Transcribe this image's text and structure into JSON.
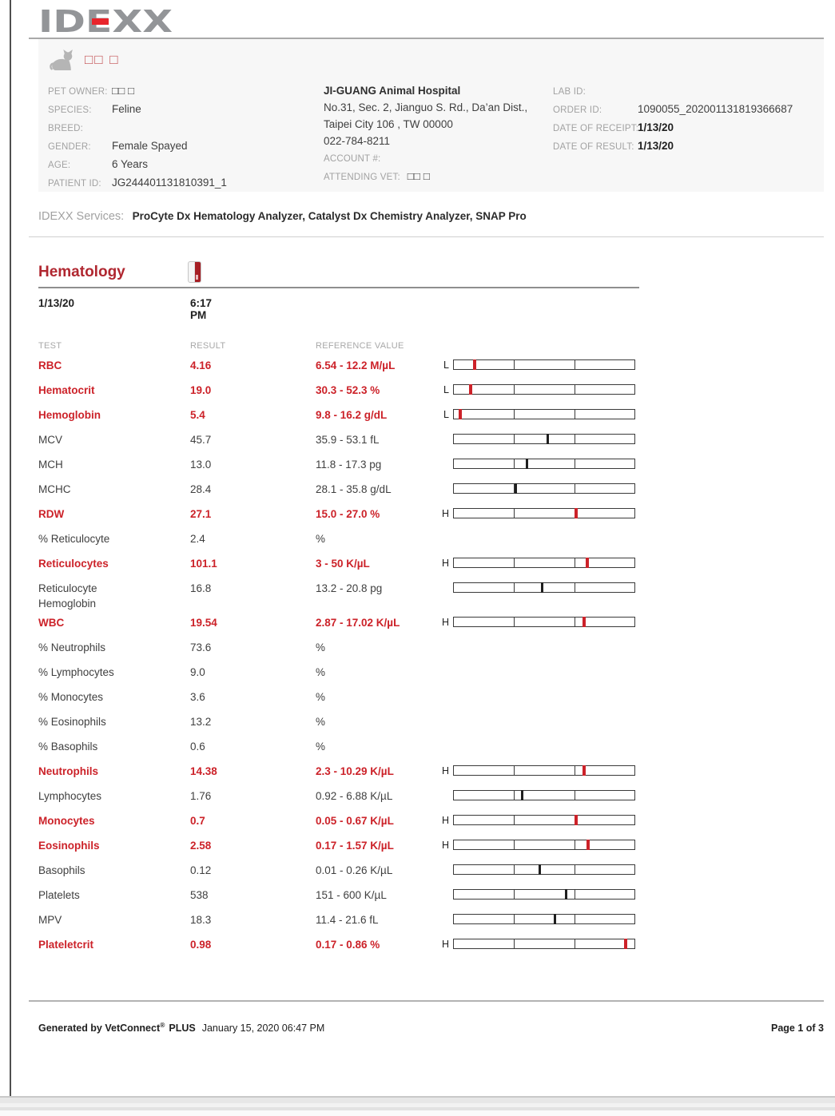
{
  "colors": {
    "abnormal_red": "#cc2229",
    "heading_red": "#b02730",
    "logo_gray": "#939598",
    "logo_red": "#e8252c",
    "label_gray": "#a2a2a2",
    "panel_bg": "#f7f7f7"
  },
  "header": {
    "logo_text": "IDEXX",
    "pet_name": "□□ □",
    "fields_left": [
      {
        "label": "PET OWNER:",
        "value": "□□ □"
      },
      {
        "label": "SPECIES:",
        "value": "Feline"
      },
      {
        "label": "BREED:",
        "value": ""
      },
      {
        "label": "GENDER:",
        "value": "Female Spayed"
      },
      {
        "label": "AGE:",
        "value": "6 Years"
      },
      {
        "label": "PATIENT ID:",
        "value": "JG244401131810391_1"
      }
    ],
    "hospital": {
      "name": "JI-GUANG Animal Hospital",
      "address1": "No.31, Sec. 2, Jianguo S. Rd., Da’an Dist.,",
      "address2": "Taipei City 106 , TW 00000",
      "phone": "022-784-8211",
      "account_label": "ACCOUNT #:",
      "attending_label": "ATTENDING VET:",
      "attending_value": "□□ □"
    },
    "order": [
      {
        "label": "LAB ID:",
        "value": ""
      },
      {
        "label": "ORDER ID:",
        "value": "1090055_202001131819366687"
      },
      {
        "label": "DATE OF RECEIPT:",
        "value": "1/13/20"
      },
      {
        "label": "DATE OF RESULT:",
        "value": "1/13/20"
      }
    ]
  },
  "services": {
    "label": "IDEXX Services:",
    "value": "ProCyte Dx Hematology Analyzer, Catalyst Dx Chemistry Analyzer, SNAP Pro"
  },
  "hematology": {
    "title": "Hematology",
    "date": "1/13/20",
    "time": "6:17 PM",
    "columns": {
      "test": "TEST",
      "result": "RESULT",
      "reference": "REFERENCE VALUE"
    },
    "rows": [
      {
        "test": "RBC",
        "result": "4.16",
        "reference": "6.54 - 12.2 M/µL",
        "flag": "L",
        "abnormal": true,
        "bar": true,
        "marker_pct": 11.5
      },
      {
        "test": "Hematocrit",
        "result": "19.0",
        "reference": "30.3 - 52.3 %",
        "flag": "L",
        "abnormal": true,
        "bar": true,
        "marker_pct": 9.5
      },
      {
        "test": "Hemoglobin",
        "result": "5.4",
        "reference": "9.8 - 16.2 g/dL",
        "flag": "L",
        "abnormal": true,
        "bar": true,
        "marker_pct": 3.5
      },
      {
        "test": "MCV",
        "result": "45.7",
        "reference": "35.9 - 53.1 fL",
        "flag": "",
        "abnormal": false,
        "bar": true,
        "marker_pct": 52.3
      },
      {
        "test": "MCH",
        "result": "13.0",
        "reference": "11.8 - 17.3 pg",
        "flag": "",
        "abnormal": false,
        "bar": true,
        "marker_pct": 40.6
      },
      {
        "test": "MCHC",
        "result": "28.4",
        "reference": "28.1 - 35.8 g/dL",
        "flag": "",
        "abnormal": false,
        "bar": true,
        "marker_pct": 34.6
      },
      {
        "test": "RDW",
        "result": "27.1",
        "reference": "15.0 - 27.0 %",
        "flag": "H",
        "abnormal": true,
        "bar": true,
        "marker_pct": 67.5
      },
      {
        "test": "% Reticulocyte",
        "result": "2.4",
        "reference": "%",
        "flag": "",
        "abnormal": false,
        "bar": false,
        "marker_pct": null
      },
      {
        "test": "Reticulocytes",
        "result": "101.1",
        "reference": "3 - 50 K/µL",
        "flag": "H",
        "abnormal": true,
        "bar": true,
        "marker_pct": 74
      },
      {
        "test": "Reticulocyte\nHemoglobin",
        "result": "16.8",
        "reference": "13.2 - 20.8 pg",
        "flag": "",
        "abnormal": false,
        "bar": true,
        "marker_pct": 49
      },
      {
        "test": "WBC",
        "result": "19.54",
        "reference": "2.87 - 17.02 K/µL",
        "flag": "H",
        "abnormal": true,
        "bar": true,
        "marker_pct": 72
      },
      {
        "test": "% Neutrophils",
        "result": "73.6",
        "reference": "%",
        "flag": "",
        "abnormal": false,
        "bar": false,
        "marker_pct": null
      },
      {
        "test": "% Lymphocytes",
        "result": "9.0",
        "reference": "%",
        "flag": "",
        "abnormal": false,
        "bar": false,
        "marker_pct": null
      },
      {
        "test": "% Monocytes",
        "result": "3.6",
        "reference": "%",
        "flag": "",
        "abnormal": false,
        "bar": false,
        "marker_pct": null
      },
      {
        "test": "% Eosinophils",
        "result": "13.2",
        "reference": "%",
        "flag": "",
        "abnormal": false,
        "bar": false,
        "marker_pct": null
      },
      {
        "test": "% Basophils",
        "result": "0.6",
        "reference": "%",
        "flag": "",
        "abnormal": false,
        "bar": false,
        "marker_pct": null
      },
      {
        "test": "Neutrophils",
        "result": "14.38",
        "reference": "2.3 - 10.29 K/µL",
        "flag": "H",
        "abnormal": true,
        "bar": true,
        "marker_pct": 72
      },
      {
        "test": "Lymphocytes",
        "result": "1.76",
        "reference": "0.92 - 6.88 K/µL",
        "flag": "",
        "abnormal": false,
        "bar": true,
        "marker_pct": 38
      },
      {
        "test": "Monocytes",
        "result": "0.7",
        "reference": "0.05 - 0.67 K/µL",
        "flag": "H",
        "abnormal": true,
        "bar": true,
        "marker_pct": 67.5
      },
      {
        "test": "Eosinophils",
        "result": "2.58",
        "reference": "0.17 - 1.57 K/µL",
        "flag": "H",
        "abnormal": true,
        "bar": true,
        "marker_pct": 74.5
      },
      {
        "test": "Basophils",
        "result": "0.12",
        "reference": "0.01 - 0.26 K/µL",
        "flag": "",
        "abnormal": false,
        "bar": true,
        "marker_pct": 48
      },
      {
        "test": "Platelets",
        "result": "538",
        "reference": "151 - 600 K/µL",
        "flag": "",
        "abnormal": false,
        "bar": true,
        "marker_pct": 62.5
      },
      {
        "test": "MPV",
        "result": "18.3",
        "reference": "11.4 - 21.6 fL",
        "flag": "",
        "abnormal": false,
        "bar": true,
        "marker_pct": 56
      },
      {
        "test": "Plateletcrit",
        "result": "0.98",
        "reference": "0.17 - 0.86 %",
        "flag": "H",
        "abnormal": true,
        "bar": true,
        "marker_pct": 95
      }
    ]
  },
  "footer": {
    "generated_prefix": "Generated by VetConnect",
    "reg_mark": "®",
    "plus": "PLUS",
    "generated_date": "January 15, 2020 06:47 PM",
    "page": "Page 1 of 3"
  }
}
